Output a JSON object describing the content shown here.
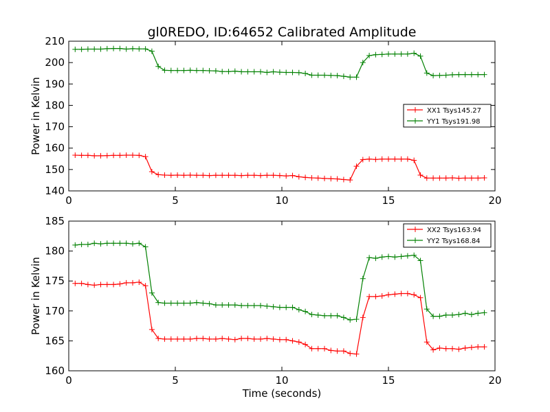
{
  "title": "gl0REDO, ID:64652 Calibrated Amplitude",
  "xlabel": "Time (seconds)",
  "colors": {
    "red": "#ff0000",
    "green": "#008000"
  },
  "chart_data": [
    {
      "type": "line",
      "title": "gl0REDO, ID:64652 Calibrated Amplitude",
      "xlabel": "",
      "ylabel": "Power in Kelvin",
      "xlim": [
        0,
        20
      ],
      "ylim": [
        140,
        210
      ],
      "xticks": [
        0,
        5,
        10,
        15,
        20
      ],
      "yticks": [
        140,
        150,
        160,
        170,
        180,
        190,
        200,
        210
      ],
      "grid": false,
      "legend_position": "center-right",
      "x": [
        0.3,
        0.6,
        0.9,
        1.2,
        1.5,
        1.8,
        2.1,
        2.4,
        2.7,
        3.0,
        3.3,
        3.6,
        3.9,
        4.2,
        4.5,
        4.8,
        5.1,
        5.4,
        5.7,
        6.0,
        6.3,
        6.6,
        6.9,
        7.2,
        7.5,
        7.8,
        8.1,
        8.4,
        8.7,
        9.0,
        9.3,
        9.6,
        9.9,
        10.2,
        10.5,
        10.8,
        11.1,
        11.4,
        11.7,
        12.0,
        12.3,
        12.6,
        12.9,
        13.2,
        13.5,
        13.8,
        14.1,
        14.4,
        14.7,
        15.0,
        15.3,
        15.6,
        15.9,
        16.2,
        16.5,
        16.8,
        17.1,
        17.4,
        17.7,
        18.0,
        18.3,
        18.6,
        18.9,
        19.2,
        19.5
      ],
      "series": [
        {
          "name": "XX1 Tsys145.27",
          "color": "#ff0000",
          "values": [
            156.7,
            156.6,
            156.6,
            156.4,
            156.4,
            156.5,
            156.6,
            156.6,
            156.7,
            156.7,
            156.6,
            156.0,
            149.0,
            147.6,
            147.4,
            147.3,
            147.4,
            147.3,
            147.4,
            147.3,
            147.3,
            147.2,
            147.3,
            147.3,
            147.3,
            147.3,
            147.2,
            147.3,
            147.3,
            147.2,
            147.3,
            147.3,
            147.2,
            147.0,
            147.2,
            146.6,
            146.3,
            146.1,
            146.0,
            145.8,
            145.7,
            145.6,
            145.3,
            145.1,
            151.5,
            154.6,
            154.9,
            154.7,
            154.9,
            154.9,
            154.9,
            154.9,
            154.9,
            154.3,
            147.4,
            146.0,
            146.0,
            146.0,
            146.0,
            146.1,
            145.9,
            146.0,
            146.0,
            146.0,
            146.1
          ]
        },
        {
          "name": "YY1 Tsys191.98",
          "color": "#008000",
          "values": [
            206.2,
            206.2,
            206.3,
            206.3,
            206.3,
            206.5,
            206.6,
            206.6,
            206.3,
            206.5,
            206.4,
            206.4,
            205.3,
            198.2,
            196.4,
            196.3,
            196.3,
            196.3,
            196.4,
            196.3,
            196.3,
            196.2,
            196.1,
            195.8,
            195.8,
            196.0,
            195.7,
            195.7,
            195.7,
            195.7,
            195.4,
            195.7,
            195.5,
            195.4,
            195.4,
            195.3,
            194.9,
            194.1,
            194.1,
            194.1,
            194.0,
            193.9,
            193.6,
            193.2,
            193.2,
            200.0,
            203.3,
            203.7,
            203.8,
            204.0,
            204.0,
            204.0,
            204.0,
            204.4,
            203.0,
            195.1,
            193.9,
            194.0,
            194.1,
            194.3,
            194.4,
            194.4,
            194.4,
            194.4,
            194.4
          ]
        }
      ]
    },
    {
      "type": "line",
      "title": "",
      "xlabel": "Time (seconds)",
      "ylabel": "Power in Kelvin",
      "xlim": [
        0,
        20
      ],
      "ylim": [
        160,
        185
      ],
      "xticks": [
        0,
        5,
        10,
        15,
        20
      ],
      "yticks": [
        160,
        165,
        170,
        175,
        180,
        185
      ],
      "grid": false,
      "legend_position": "top-right",
      "x": [
        0.3,
        0.6,
        0.9,
        1.2,
        1.5,
        1.8,
        2.1,
        2.4,
        2.7,
        3.0,
        3.3,
        3.6,
        3.9,
        4.2,
        4.5,
        4.8,
        5.1,
        5.4,
        5.7,
        6.0,
        6.3,
        6.6,
        6.9,
        7.2,
        7.5,
        7.8,
        8.1,
        8.4,
        8.7,
        9.0,
        9.3,
        9.6,
        9.9,
        10.2,
        10.5,
        10.8,
        11.1,
        11.4,
        11.7,
        12.0,
        12.3,
        12.6,
        12.9,
        13.2,
        13.5,
        13.8,
        14.1,
        14.4,
        14.7,
        15.0,
        15.3,
        15.6,
        15.9,
        16.2,
        16.5,
        16.8,
        17.1,
        17.4,
        17.7,
        18.0,
        18.3,
        18.6,
        18.9,
        19.2,
        19.5
      ],
      "series": [
        {
          "name": "XX2 Tsys163.94",
          "color": "#ff0000",
          "values": [
            174.6,
            174.6,
            174.4,
            174.3,
            174.4,
            174.4,
            174.4,
            174.5,
            174.7,
            174.7,
            174.8,
            174.2,
            166.9,
            165.4,
            165.3,
            165.3,
            165.3,
            165.3,
            165.3,
            165.4,
            165.4,
            165.3,
            165.3,
            165.4,
            165.3,
            165.2,
            165.4,
            165.4,
            165.3,
            165.3,
            165.4,
            165.3,
            165.2,
            165.2,
            165.0,
            164.8,
            164.4,
            163.7,
            163.7,
            163.7,
            163.4,
            163.3,
            163.3,
            162.9,
            162.8,
            168.9,
            172.4,
            172.4,
            172.5,
            172.7,
            172.8,
            172.9,
            172.9,
            172.7,
            172.2,
            164.8,
            163.5,
            163.8,
            163.7,
            163.7,
            163.6,
            163.8,
            163.9,
            164.0,
            164.0
          ]
        },
        {
          "name": "YY2 Tsys168.84",
          "color": "#008000",
          "values": [
            181.0,
            181.1,
            181.1,
            181.3,
            181.2,
            181.3,
            181.3,
            181.3,
            181.3,
            181.2,
            181.3,
            180.7,
            173.0,
            171.4,
            171.3,
            171.3,
            171.3,
            171.3,
            171.3,
            171.4,
            171.3,
            171.2,
            171.0,
            171.0,
            171.0,
            171.0,
            170.9,
            170.9,
            170.9,
            170.9,
            170.8,
            170.7,
            170.6,
            170.6,
            170.6,
            170.2,
            169.9,
            169.4,
            169.3,
            169.2,
            169.2,
            169.2,
            168.9,
            168.5,
            168.6,
            175.4,
            178.9,
            178.8,
            179.0,
            179.1,
            179.0,
            179.1,
            179.2,
            179.3,
            178.4,
            170.3,
            169.1,
            169.1,
            169.3,
            169.3,
            169.4,
            169.6,
            169.4,
            169.6,
            169.7
          ]
        }
      ]
    }
  ]
}
